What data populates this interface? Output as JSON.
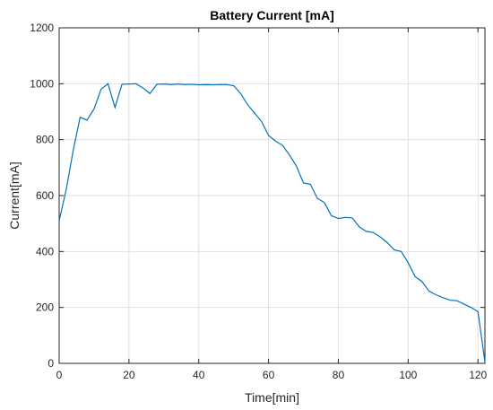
{
  "chart_data": {
    "type": "line",
    "title": "Battery Current [mA]",
    "xlabel": "Time[min]",
    "ylabel": "Current[mA]",
    "xlim": [
      0,
      122
    ],
    "ylim": [
      0,
      1200
    ],
    "xticks": [
      0,
      20,
      40,
      60,
      80,
      100,
      120
    ],
    "yticks": [
      0,
      200,
      400,
      600,
      800,
      1000,
      1200
    ],
    "xtick_labels": [
      "0",
      "20",
      "40",
      "60",
      "80",
      "100",
      "120"
    ],
    "ytick_labels": [
      "0",
      "200",
      "400",
      "600",
      "800",
      "1000",
      "1200"
    ],
    "grid": true,
    "series_color": "#0072BD",
    "axis_color": "#262626",
    "grid_color": "#dfdfdf",
    "series": [
      {
        "x": [
          0,
          2,
          4,
          6,
          8,
          10,
          12,
          14,
          16,
          18,
          20,
          22,
          24,
          26,
          28,
          30,
          32,
          34,
          36,
          38,
          40,
          42,
          44,
          46,
          48,
          50,
          52,
          54,
          56,
          58,
          60,
          62,
          64,
          66,
          68,
          70,
          72,
          74,
          76,
          78,
          80,
          82,
          84,
          86,
          88,
          90,
          92,
          94,
          96,
          98,
          100,
          102,
          104,
          106,
          108,
          110,
          112,
          114,
          116,
          118,
          120,
          122
        ],
        "y": [
          510,
          620,
          760,
          880,
          870,
          910,
          980,
          1000,
          915,
          998,
          999,
          1000,
          985,
          965,
          998,
          999,
          997,
          999,
          997,
          998,
          996,
          997,
          996,
          997,
          997,
          993,
          965,
          925,
          895,
          865,
          815,
          795,
          780,
          745,
          705,
          645,
          640,
          590,
          575,
          528,
          518,
          522,
          520,
          488,
          472,
          468,
          452,
          432,
          406,
          400,
          360,
          310,
          292,
          258,
          245,
          235,
          226,
          224,
          212,
          200,
          185,
          5
        ]
      }
    ]
  }
}
